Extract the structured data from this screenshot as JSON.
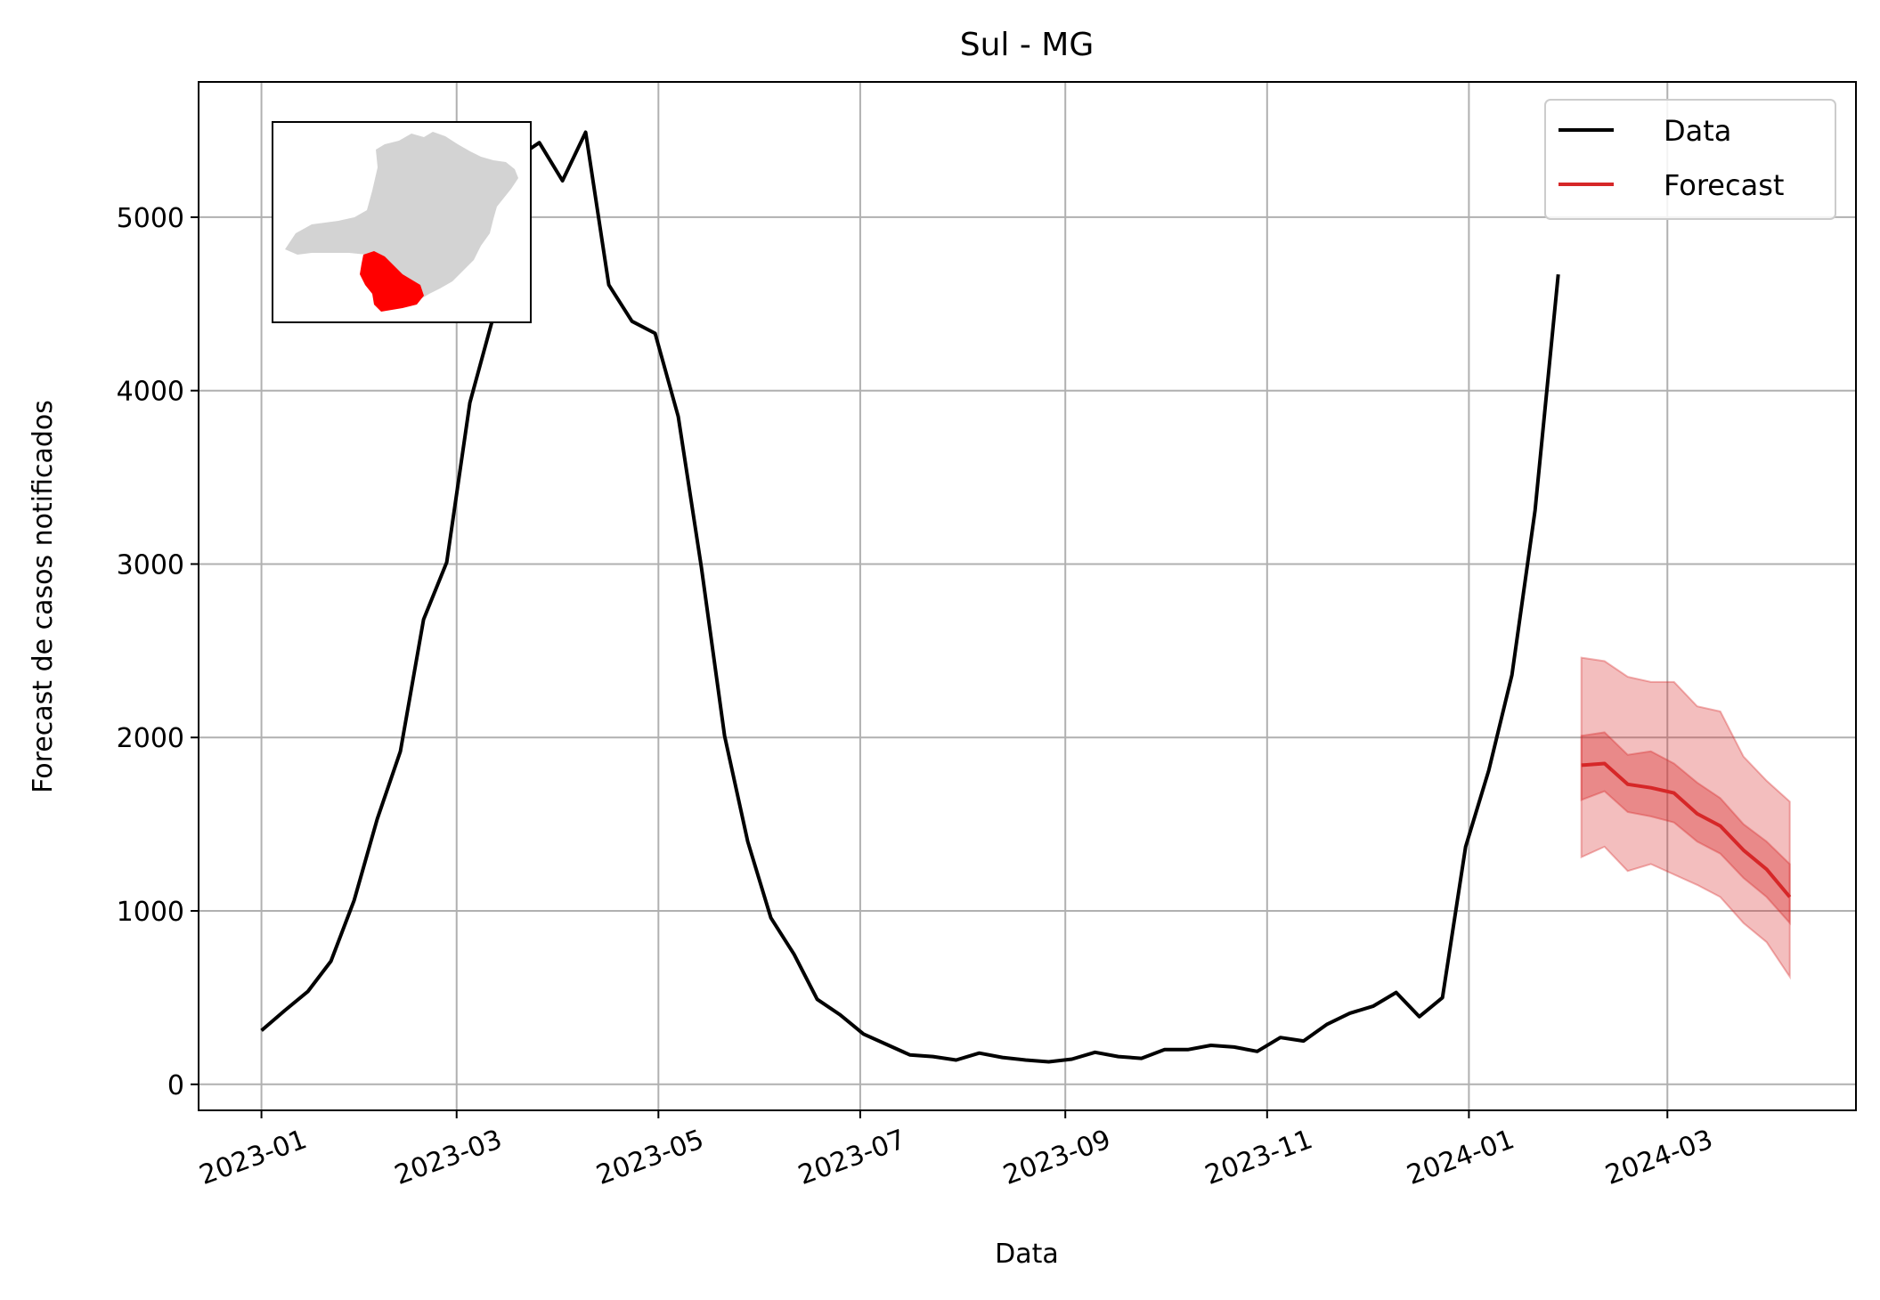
{
  "chart_data": {
    "type": "line",
    "title": "Sul - MG",
    "xlabel": "Data",
    "ylabel": "Forecast de casos notificados",
    "ylim": [
      -150,
      5780
    ],
    "xlim": [
      "2022-12-13",
      "2024-04-27"
    ],
    "grid": true,
    "legend_position": "top-right",
    "x_tick_labels": [
      "2023-01",
      "2023-03",
      "2023-05",
      "2023-07",
      "2023-09",
      "2023-11",
      "2024-01",
      "2024-03"
    ],
    "x_tick_dates": [
      "2023-01-01",
      "2023-03-01",
      "2023-05-01",
      "2023-07-01",
      "2023-09-01",
      "2023-11-01",
      "2024-01-01",
      "2024-03-01"
    ],
    "y_ticks": [
      0,
      1000,
      2000,
      3000,
      4000,
      5000
    ],
    "series": [
      {
        "name": "Data",
        "color": "#000000",
        "x": [
          "2023-01-01",
          "2023-01-08",
          "2023-01-15",
          "2023-01-22",
          "2023-01-29",
          "2023-02-05",
          "2023-02-12",
          "2023-02-19",
          "2023-02-26",
          "2023-03-05",
          "2023-03-12",
          "2023-03-19",
          "2023-03-26",
          "2023-04-02",
          "2023-04-09",
          "2023-04-16",
          "2023-04-23",
          "2023-04-30",
          "2023-05-07",
          "2023-05-14",
          "2023-05-21",
          "2023-05-28",
          "2023-06-04",
          "2023-06-11",
          "2023-06-18",
          "2023-06-25",
          "2023-07-02",
          "2023-07-09",
          "2023-07-16",
          "2023-07-23",
          "2023-07-30",
          "2023-08-06",
          "2023-08-13",
          "2023-08-20",
          "2023-08-27",
          "2023-09-03",
          "2023-09-10",
          "2023-09-17",
          "2023-09-24",
          "2023-10-01",
          "2023-10-08",
          "2023-10-15",
          "2023-10-22",
          "2023-10-29",
          "2023-11-05",
          "2023-11-12",
          "2023-11-19",
          "2023-11-26",
          "2023-12-03",
          "2023-12-10",
          "2023-12-17",
          "2023-12-24",
          "2023-12-31",
          "2024-01-07",
          "2024-01-14",
          "2024-01-21",
          "2024-01-28"
        ],
        "values": [
          310,
          425,
          535,
          710,
          1060,
          1530,
          1920,
          2680,
          3010,
          3930,
          4420,
          5340,
          5430,
          5210,
          5490,
          4610,
          4400,
          4330,
          3850,
          2980,
          2010,
          1400,
          960,
          750,
          490,
          400,
          290,
          230,
          170,
          160,
          140,
          180,
          155,
          140,
          130,
          145,
          185,
          160,
          150,
          200,
          200,
          225,
          215,
          190,
          270,
          250,
          345,
          410,
          450,
          530,
          390,
          500,
          1370,
          1810,
          2360,
          3310,
          4670
        ]
      },
      {
        "name": "Forecast",
        "color": "#d62728",
        "x": [
          "2024-02-04",
          "2024-02-11",
          "2024-02-18",
          "2024-02-25",
          "2024-03-03",
          "2024-03-10",
          "2024-03-17",
          "2024-03-24",
          "2024-03-31",
          "2024-04-07"
        ],
        "values": [
          1840,
          1850,
          1730,
          1710,
          1680,
          1560,
          1490,
          1350,
          1240,
          1080
        ],
        "band_inner_low": [
          1640,
          1690,
          1570,
          1545,
          1510,
          1400,
          1330,
          1190,
          1080,
          930
        ],
        "band_inner_high": [
          2010,
          2030,
          1900,
          1920,
          1850,
          1740,
          1650,
          1500,
          1400,
          1270
        ],
        "band_outer_low": [
          1310,
          1370,
          1230,
          1270,
          1210,
          1150,
          1080,
          930,
          820,
          620
        ],
        "band_outer_high": [
          2460,
          2440,
          2350,
          2320,
          2320,
          2180,
          2150,
          1890,
          1750,
          1630
        ]
      }
    ]
  },
  "legend": {
    "data_label": "Data",
    "forecast_label": "Forecast"
  },
  "inset_map": {
    "region_color": "#ff0000",
    "state_color": "#d3d3d3"
  }
}
